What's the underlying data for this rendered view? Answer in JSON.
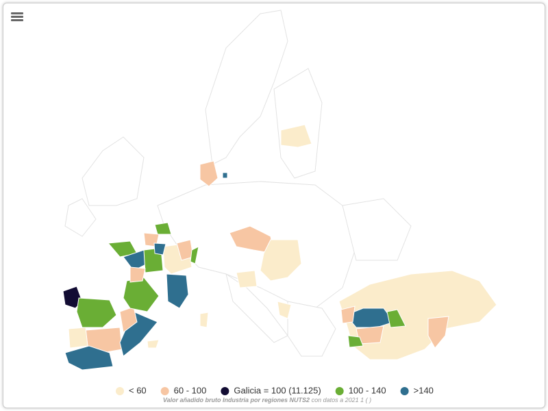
{
  "legend": {
    "items": [
      {
        "label": "< 60",
        "color": "#fbeccb"
      },
      {
        "label": "60 - 100",
        "color": "#f7c6a3"
      },
      {
        "label": "Galicia = 100 (11.125)",
        "color": "#120c33"
      },
      {
        "label": "100 - 140",
        "color": "#6aae35"
      },
      {
        "label": ">140",
        "color": "#2f6f8f"
      }
    ]
  },
  "caption": {
    "title": "Valor añadido bruto Industria por regiones NUTS2",
    "note": "con datos a 2021 1 ( )"
  }
}
